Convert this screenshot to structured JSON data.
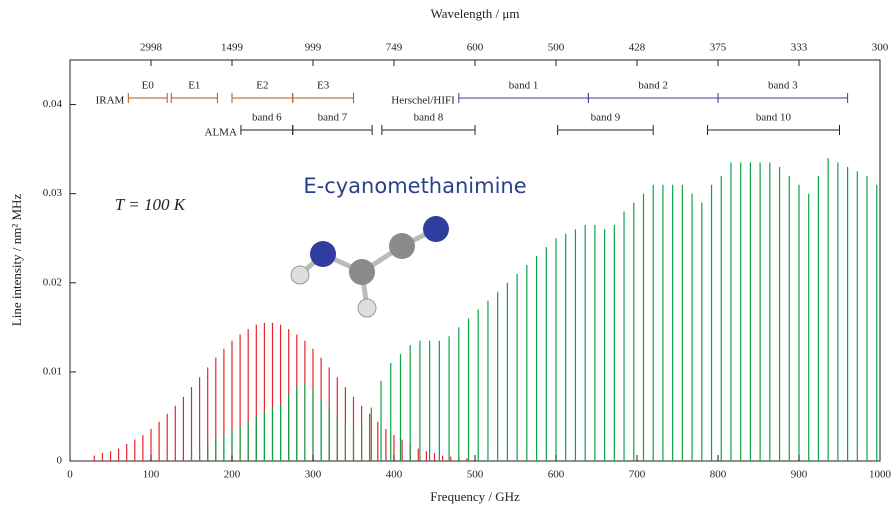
{
  "chart_data": {
    "type": "stick",
    "title": "E-cyanomethanimine",
    "annotation": "T = 100 K",
    "xlabel": "Frequency / GHz",
    "ylabel": "Line intensity / nm² MHz",
    "x2label": "Wavelength / μm",
    "xlim": [
      0,
      1000
    ],
    "ylim": [
      0,
      0.045
    ],
    "xticks": [
      0,
      100,
      200,
      300,
      400,
      500,
      600,
      700,
      800,
      900,
      1000
    ],
    "yticks": [
      0,
      0.01,
      0.02,
      0.03,
      0.04
    ],
    "x2ticks": [
      {
        "value": 100,
        "label": "2998"
      },
      {
        "value": 200,
        "label": "1499"
      },
      {
        "value": 300,
        "label": "999"
      },
      {
        "value": 400,
        "label": "749"
      },
      {
        "value": 500,
        "label": "600"
      },
      {
        "value": 600,
        "label": "500"
      },
      {
        "value": 700,
        "label": "428"
      },
      {
        "value": 800,
        "label": "375"
      },
      {
        "value": 900,
        "label": "333"
      },
      {
        "value": 1000,
        "label": "300"
      }
    ],
    "series": [
      {
        "color": "#e8232b",
        "x": [
          30,
          40,
          50,
          60,
          70,
          80,
          90,
          100,
          110,
          120,
          130,
          140,
          150,
          160,
          170,
          180,
          190,
          200,
          210,
          220,
          230,
          240,
          250,
          260,
          270,
          280,
          290,
          300,
          310,
          320,
          330,
          340,
          350,
          360,
          370,
          380,
          390,
          400,
          410,
          420,
          430,
          440,
          450,
          460,
          470,
          480,
          490,
          500
        ],
        "values": [
          0.0006,
          0.0009,
          0.0011,
          0.0014,
          0.0019,
          0.0024,
          0.0029,
          0.0036,
          0.0044,
          0.0053,
          0.0062,
          0.0072,
          0.0083,
          0.0094,
          0.0105,
          0.0116,
          0.0126,
          0.0135,
          0.0142,
          0.0148,
          0.0153,
          0.0155,
          0.0155,
          0.0153,
          0.0148,
          0.0142,
          0.0135,
          0.0126,
          0.0116,
          0.0105,
          0.0094,
          0.0083,
          0.0072,
          0.0062,
          0.0053,
          0.0044,
          0.0036,
          0.0029,
          0.0024,
          0.0019,
          0.0014,
          0.0011,
          0.0009,
          0.0006,
          0.0005,
          0.0004,
          0.0003,
          0.0002
        ]
      },
      {
        "color": "#0ea34a",
        "x": [
          150,
          160,
          170,
          180,
          190,
          200,
          210,
          220,
          230,
          240,
          250,
          260,
          270,
          280,
          290,
          300,
          310,
          320,
          330,
          340,
          350
        ],
        "values": [
          0.001,
          0.0015,
          0.002,
          0.0025,
          0.003,
          0.0035,
          0.004,
          0.0045,
          0.005,
          0.0055,
          0.006,
          0.0065,
          0.0075,
          0.0085,
          0.0088,
          0.008,
          0.007,
          0.006,
          0.005,
          0.004,
          0.0035
        ]
      },
      {
        "color": "#0ea34a",
        "x": [
          360,
          372,
          384,
          396,
          408,
          420,
          432,
          444,
          456,
          468,
          480,
          492,
          504,
          516,
          528,
          540,
          552,
          564,
          576,
          588,
          600,
          612,
          624,
          636,
          648,
          660,
          672,
          684,
          696,
          708,
          720,
          732,
          744,
          756,
          768,
          780,
          792,
          804,
          816,
          828,
          840,
          852,
          864,
          876,
          888,
          900,
          912,
          924,
          936,
          948,
          960,
          972,
          984,
          996
        ],
        "values": [
          0.004,
          0.006,
          0.009,
          0.011,
          0.012,
          0.013,
          0.0135,
          0.0135,
          0.0135,
          0.014,
          0.015,
          0.016,
          0.017,
          0.018,
          0.019,
          0.02,
          0.021,
          0.022,
          0.023,
          0.024,
          0.025,
          0.0255,
          0.026,
          0.0265,
          0.0265,
          0.026,
          0.0265,
          0.028,
          0.029,
          0.03,
          0.031,
          0.031,
          0.031,
          0.031,
          0.03,
          0.029,
          0.031,
          0.032,
          0.0335,
          0.0335,
          0.0335,
          0.0335,
          0.0335,
          0.033,
          0.032,
          0.031,
          0.03,
          0.032,
          0.034,
          0.0335,
          0.033,
          0.0325,
          0.032,
          0.031
        ]
      }
    ],
    "instruments": [
      {
        "name": "IRAM",
        "color": "#b5561e",
        "bands": [
          {
            "label": "E0",
            "range": [
              72,
              120
            ]
          },
          {
            "label": "E1",
            "range": [
              125,
              182
            ]
          },
          {
            "label": "E2",
            "range": [
              200,
              275
            ]
          },
          {
            "label": "E3",
            "range": [
              275,
              350
            ]
          }
        ]
      },
      {
        "name": "Herschel/HIFI",
        "color": "#3a3f9e",
        "bands": [
          {
            "label": "band 1",
            "range": [
              480,
              640
            ]
          },
          {
            "label": "band 2",
            "range": [
              640,
              800
            ]
          },
          {
            "label": "band 3",
            "range": [
              800,
              960
            ]
          }
        ]
      },
      {
        "name": "ALMA",
        "color": "#222222",
        "bands": [
          {
            "label": "band 6",
            "range": [
              211,
              275
            ]
          },
          {
            "label": "band 7",
            "range": [
              275,
              373
            ]
          },
          {
            "label": "band 8",
            "range": [
              385,
              500
            ]
          },
          {
            "label": "band 9",
            "range": [
              602,
              720
            ]
          },
          {
            "label": "band 10",
            "range": [
              787,
              950
            ]
          }
        ]
      }
    ]
  }
}
